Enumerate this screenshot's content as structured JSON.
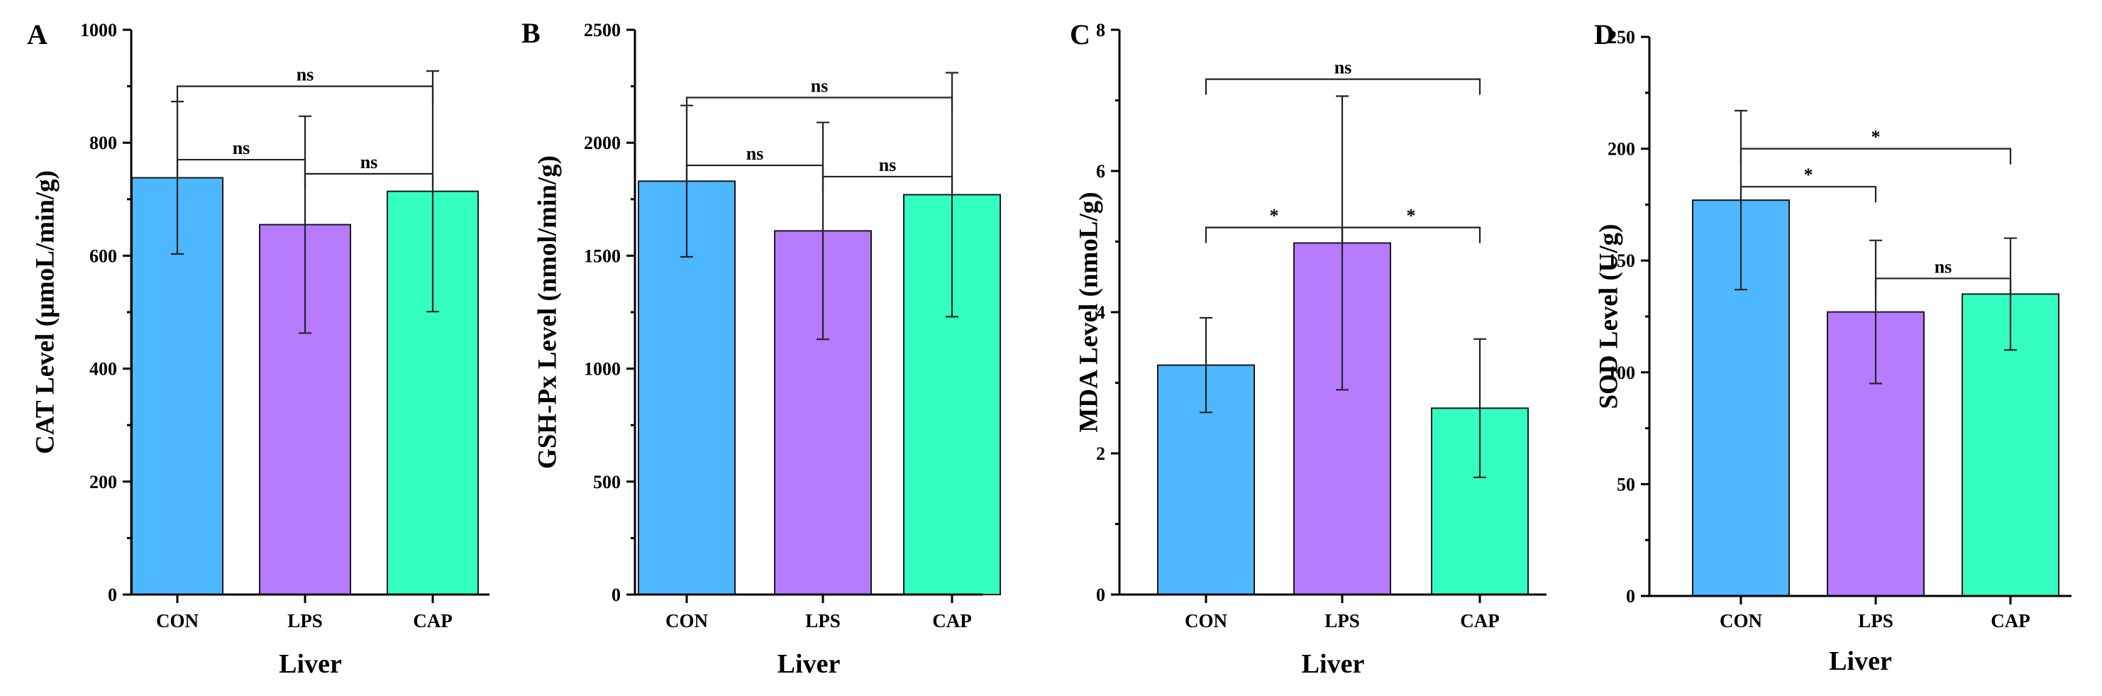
{
  "colors": {
    "CON": "#4DB8FF",
    "LPS": "#B77BFF",
    "CAP": "#33FFC0"
  },
  "chart_data": [
    {
      "type": "bar",
      "panel": "A",
      "categories": [
        "CON",
        "LPS",
        "CAP"
      ],
      "values": [
        738,
        655,
        714
      ],
      "errors": [
        135,
        192,
        213
      ],
      "ylabel": "CAT Level (μmoL/min/g)",
      "xlabel": "Liver",
      "ylim": [
        0,
        1000
      ],
      "yticks": [
        0,
        200,
        400,
        600,
        800,
        1000
      ],
      "significance": [
        {
          "from": 0,
          "to": 1,
          "label": "ns",
          "y": 770
        },
        {
          "from": 1,
          "to": 2,
          "label": "ns",
          "y": 745
        },
        {
          "from": 0,
          "to": 2,
          "label": "ns",
          "y": 900
        }
      ]
    },
    {
      "type": "bar",
      "panel": "B",
      "categories": [
        "CON",
        "LPS",
        "CAP"
      ],
      "values": [
        1830,
        1610,
        1770
      ],
      "errors": [
        335,
        480,
        540
      ],
      "ylabel": "GSH-Px Level (nmol/min/g)",
      "xlabel": "Liver",
      "ylim": [
        0,
        2500
      ],
      "yticks": [
        0,
        500,
        1000,
        1500,
        2000,
        2500
      ],
      "significance": [
        {
          "from": 0,
          "to": 1,
          "label": "ns",
          "y": 1900
        },
        {
          "from": 1,
          "to": 2,
          "label": "ns",
          "y": 1850
        },
        {
          "from": 0,
          "to": 2,
          "label": "ns",
          "y": 2200
        }
      ]
    },
    {
      "type": "bar",
      "panel": "C",
      "categories": [
        "CON",
        "LPS",
        "CAP"
      ],
      "values": [
        3.25,
        4.98,
        2.64
      ],
      "errors": [
        0.67,
        2.08,
        0.98
      ],
      "ylabel": "MDA Level (nmoL/g)",
      "xlabel": "Liver",
      "ylim": [
        0,
        8
      ],
      "yticks": [
        0,
        2,
        4,
        6,
        8
      ],
      "significance": [
        {
          "from": 0,
          "to": 1,
          "label": "*",
          "y": 5.2
        },
        {
          "from": 1,
          "to": 2,
          "label": "*",
          "y": 5.2
        },
        {
          "from": 0,
          "to": 2,
          "label": "ns",
          "y": 7.3
        }
      ]
    },
    {
      "type": "bar",
      "panel": "D",
      "categories": [
        "CON",
        "LPS",
        "CAP"
      ],
      "values": [
        177,
        127,
        135
      ],
      "errors": [
        40,
        32,
        25
      ],
      "ylabel": "SOD Level (U/g)",
      "xlabel": "Liver",
      "ylim": [
        0,
        250
      ],
      "yticks": [
        0,
        50,
        100,
        150,
        200,
        250
      ],
      "significance": [
        {
          "from": 0,
          "to": 1,
          "label": "*",
          "y": 183
        },
        {
          "from": 1,
          "to": 2,
          "label": "ns",
          "y": 142
        },
        {
          "from": 0,
          "to": 2,
          "label": "*",
          "y": 200
        }
      ]
    }
  ]
}
